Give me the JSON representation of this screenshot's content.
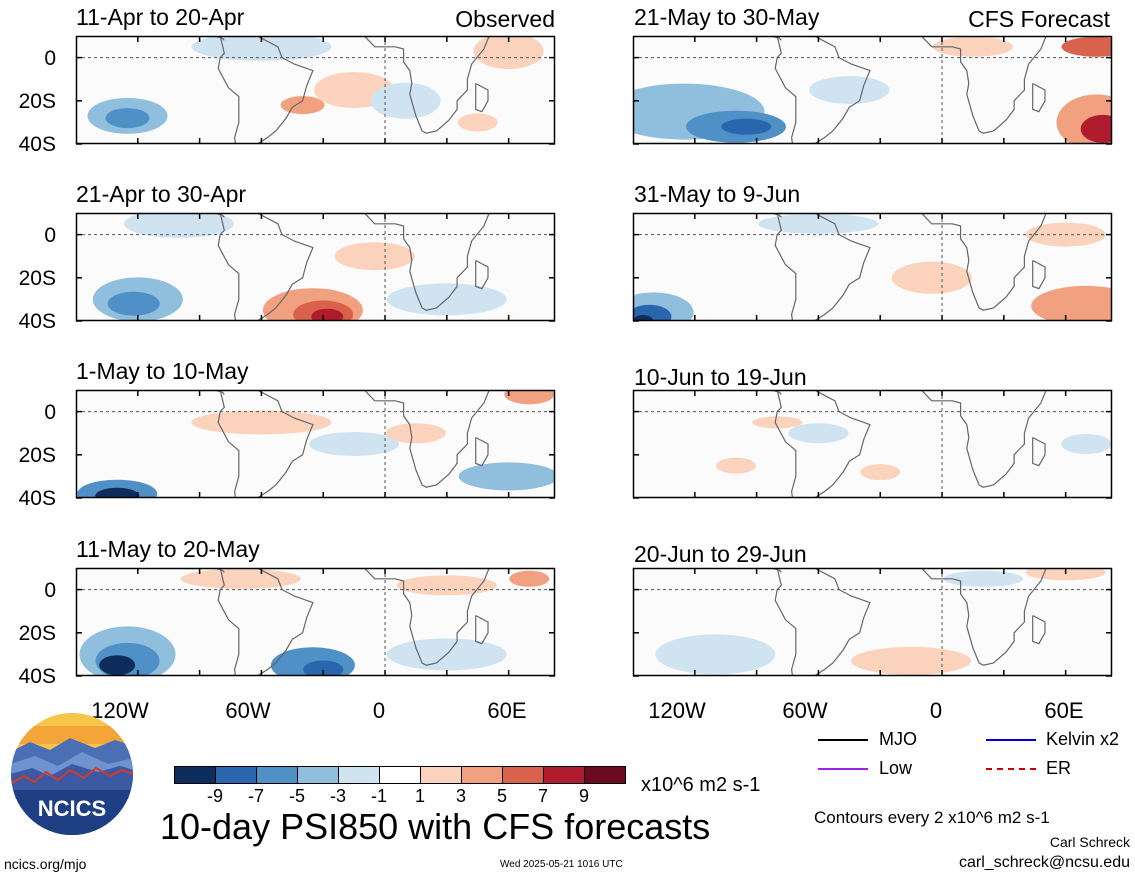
{
  "panel_tags": {
    "observed": "Observed",
    "forecast": "CFS Forecast"
  },
  "panels_left": [
    {
      "period": "11-Apr to 20-Apr"
    },
    {
      "period": "21-Apr to 30-Apr"
    },
    {
      "period": "1-May to 10-May"
    },
    {
      "period": "11-May to 20-May"
    }
  ],
  "panels_right": [
    {
      "period": "21-May to 30-May"
    },
    {
      "period": "31-May to 9-Jun"
    },
    {
      "period": "10-Jun to 19-Jun"
    },
    {
      "period": "20-Jun to 29-Jun"
    }
  ],
  "y_ticks": [
    "0",
    "20S",
    "40S"
  ],
  "x_ticks": [
    "120W",
    "60W",
    "0",
    "60E"
  ],
  "legend": {
    "items": [
      {
        "label": "MJO",
        "color": "#000000"
      },
      {
        "label": "Kelvin x2",
        "color": "#0000cc"
      },
      {
        "label": "Low",
        "color": "#a020f0"
      },
      {
        "label": "ER",
        "color": "#cc0000"
      }
    ]
  },
  "colorbar": {
    "labels": [
      "-9",
      "-7",
      "-5",
      "-3",
      "-1",
      "1",
      "3",
      "5",
      "7",
      "9"
    ],
    "colors": [
      "#0d2e5c",
      "#2a66ad",
      "#4f90c6",
      "#8fbfdd",
      "#cfe3f1",
      "#ffffff",
      "#fbd3bd",
      "#f1a080",
      "#d9624d",
      "#b01c2e",
      "#6b0a20"
    ],
    "units": "x10^6 m2 s-1"
  },
  "main_title": "10-day PSI850 with CFS forecasts",
  "contour_note": "Contours every 2 x10^6 m2 s-1",
  "author": "Carl Schreck",
  "email": "carl_schreck@ncsu.edu",
  "site": "ncics.org/mjo",
  "timestamp": "Wed 2025-05-21 1016 UTC",
  "logo_text": "NCICS"
}
